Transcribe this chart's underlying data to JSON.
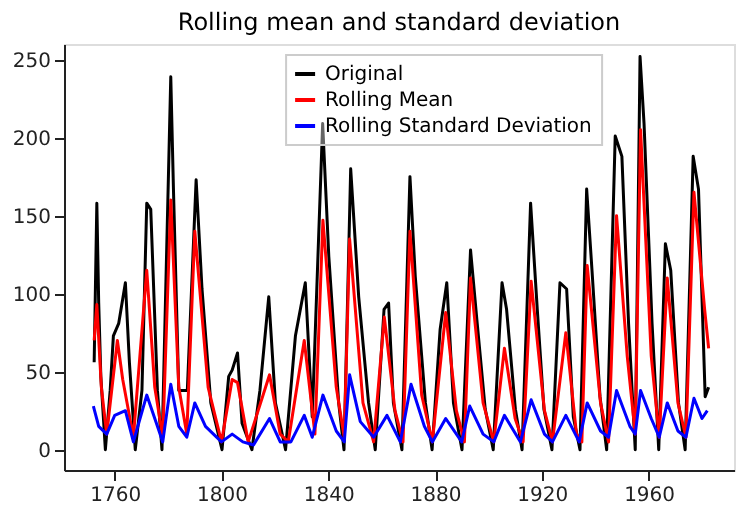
{
  "chart_data": {
    "type": "line",
    "title": "Rolling mean and standard deviation",
    "xlim": [
      1741,
      1992
    ],
    "xticks": [
      1760,
      1800,
      1840,
      1880,
      1920,
      1960
    ],
    "ylim": [
      -13,
      260
    ],
    "yticks": [
      0,
      50,
      100,
      150,
      200,
      250
    ],
    "grid": false,
    "legend": "top",
    "marker": "none",
    "line_style": "solid",
    "series": [
      {
        "name": "Original",
        "color": "#000000",
        "x": [
          1752.3,
          1753.3,
          1754,
          1754.8,
          1756.5,
          1758.3,
          1759.5,
          1761.5,
          1764,
          1765.5,
          1767.7,
          1770.2,
          1772,
          1773.5,
          1776,
          1777.7,
          1781,
          1782,
          1784,
          1787.2,
          1790.5,
          1792.7,
          1796,
          1800.2,
          1802.7,
          1804,
          1806,
          1807.7,
          1811.4,
          1814.4,
          1817.7,
          1820.2,
          1824,
          1827.7,
          1831.4,
          1834,
          1837.9,
          1840.2,
          1843.9,
          1845.9,
          1848.4,
          1851.4,
          1855.1,
          1857.6,
          1860.9,
          1862.6,
          1864.4,
          1867.6,
          1870.6,
          1872.6,
          1876.4,
          1878.9,
          1881.9,
          1884.4,
          1886.9,
          1890.1,
          1893.3,
          1895.8,
          1898.8,
          1901.8,
          1905.1,
          1906.8,
          1910.1,
          1912.6,
          1915.8,
          1918.3,
          1920.8,
          1923.8,
          1926.8,
          1929.3,
          1931.8,
          1934.3,
          1936.8,
          1938.8,
          1941.8,
          1944.3,
          1947.5,
          1950,
          1952.5,
          1955,
          1956.8,
          1958.3,
          1961.3,
          1963.8,
          1966.3,
          1968.3,
          1971.2,
          1973.7,
          1976.7,
          1978.7,
          1981.2,
          1982.5
        ],
        "values": [
          56,
          158,
          94,
          47,
          0,
          38,
          73,
          81,
          107,
          56,
          0,
          38,
          158,
          154,
          38,
          0,
          239,
          167,
          38,
          38,
          173,
          103,
          30,
          0,
          47,
          51,
          62,
          17,
          0,
          38,
          98,
          30,
          0,
          73,
          107,
          21,
          209,
          124,
          30,
          0,
          180,
          98,
          30,
          0,
          90,
          94,
          30,
          0,
          175,
          111,
          30,
          0,
          77,
          107,
          30,
          0,
          128,
          81,
          26,
          0,
          107,
          90,
          26,
          0,
          158,
          90,
          26,
          0,
          107,
          103,
          21,
          0,
          167,
          115,
          34,
          0,
          201,
          188,
          81,
          0,
          252,
          209,
          81,
          0,
          132,
          115,
          30,
          0,
          188,
          167,
          34,
          40
        ]
      },
      {
        "name": "Rolling Mean",
        "color": "#ff0000",
        "x": [
          1752.3,
          1753.3,
          1755,
          1757,
          1761,
          1763,
          1767,
          1772,
          1775,
          1778,
          1781,
          1784,
          1787,
          1790,
          1795,
          1800,
          1804,
          1806,
          1810,
          1818,
          1822,
          1825,
          1831,
          1835,
          1838,
          1843,
          1846,
          1848,
          1853,
          1857,
          1861,
          1865,
          1868,
          1870.6,
          1875,
          1879,
          1884,
          1888,
          1891,
          1893.3,
          1898,
          1902,
          1906,
          1910,
          1913,
          1916,
          1921,
          1924,
          1929,
          1933,
          1935,
          1937,
          1942,
          1945,
          1948,
          1952,
          1955,
          1957,
          1961,
          1964,
          1967,
          1971,
          1974,
          1977,
          1981,
          1982.5
        ],
        "values": [
          70,
          93,
          40,
          10,
          70,
          45,
          8,
          115,
          40,
          8,
          160,
          40,
          10,
          140,
          40,
          5,
          45,
          43,
          5,
          48,
          10,
          5,
          70,
          10,
          147,
          40,
          8,
          135,
          30,
          5,
          85,
          25,
          5,
          140,
          35,
          5,
          88,
          25,
          5,
          110,
          30,
          5,
          65,
          20,
          5,
          108,
          25,
          5,
          75,
          10,
          5,
          118,
          30,
          5,
          150,
          60,
          10,
          205,
          60,
          8,
          110,
          30,
          8,
          165,
          90,
          65
        ]
      },
      {
        "name": "Rolling Standard Deviation",
        "color": "#0000ff",
        "x": [
          1752,
          1754,
          1757,
          1760,
          1764,
          1767,
          1772,
          1776,
          1778,
          1781,
          1784,
          1787,
          1790,
          1794,
          1800,
          1804,
          1808,
          1812,
          1818,
          1822,
          1826,
          1831,
          1834,
          1838,
          1843,
          1846,
          1848,
          1852,
          1857,
          1862,
          1867,
          1871,
          1876,
          1879,
          1884,
          1890,
          1893,
          1898,
          1902,
          1906,
          1912,
          1916,
          1921,
          1924,
          1929,
          1934,
          1937,
          1942,
          1945,
          1948,
          1953,
          1955,
          1957,
          1961,
          1964,
          1967,
          1971,
          1974,
          1977,
          1980,
          1982
        ],
        "values": [
          28,
          15,
          10,
          22,
          25,
          5,
          35,
          15,
          5,
          42,
          15,
          8,
          30,
          15,
          5,
          10,
          5,
          3,
          20,
          5,
          5,
          22,
          8,
          35,
          12,
          5,
          48,
          18,
          8,
          22,
          5,
          42,
          15,
          5,
          20,
          5,
          28,
          10,
          5,
          22,
          5,
          32,
          10,
          5,
          22,
          5,
          30,
          12,
          8,
          38,
          15,
          10,
          38,
          20,
          8,
          30,
          12,
          8,
          33,
          20,
          25
        ]
      }
    ]
  }
}
